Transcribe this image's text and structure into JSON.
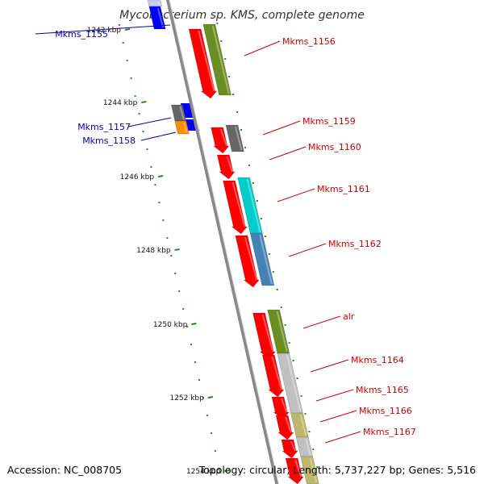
{
  "title": "Mycobacterium sp. KMS, complete genome",
  "footer": {
    "accession": "Accession: NC_008705",
    "summary": "Topology: circular; Length: 5,737,227 bp; Genes: 5,516"
  },
  "ticks": [
    "1242 kbp",
    "1244 kbp",
    "1246 kbp",
    "1248 kbp",
    "1250 kbp",
    "1252 kbp",
    "1254 kbp"
  ],
  "colors": {
    "backbone": "#888888",
    "cds_forward": "#ff0000",
    "cds_reverse": "#0000ff",
    "tick_dot": "#228b22",
    "label_forward": "#cc0000",
    "label_reverse": "#0000aa",
    "cog_green": "#6b8e23",
    "cog_grey": "#666666",
    "cog_cyan": "#00cccc",
    "cog_steel": "#4682b4",
    "cog_light": "#c0c0c0",
    "cog_khaki": "#bdb76b",
    "cog_orange": "#ff8c00",
    "cog_lavender": "#c8c8f0"
  },
  "genes": {
    "right": [
      "Mkms_1156",
      "Mkms_1159",
      "Mkms_1160",
      "Mkms_1161",
      "Mkms_1162",
      "alr",
      "Mkms_1164",
      "Mkms_1165",
      "Mkms_1166",
      "Mkms_1167"
    ],
    "left": [
      "Mkms_1155",
      "Mkms_1157",
      "Mkms_1158"
    ]
  }
}
